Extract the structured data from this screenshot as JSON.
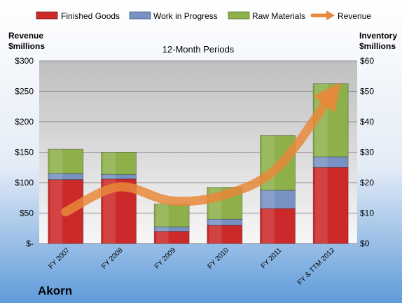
{
  "chart_data": {
    "type": "bar",
    "stacked": true,
    "subtitle": "12-Month Periods",
    "company": "Akorn",
    "categories": [
      "FY 2007",
      "FY 2008",
      "FY 2009",
      "FY 2010",
      "FY 2011",
      "FY & TTM 2012"
    ],
    "left_axis": {
      "title_line1": "Revenue",
      "title_line2": "$millions",
      "ylim": [
        0,
        300
      ],
      "tick_values": [
        0,
        50,
        100,
        150,
        200,
        250,
        300
      ],
      "tick_labels": [
        "$-",
        "$50",
        "$100",
        "$150",
        "$200",
        "$250",
        "$300"
      ]
    },
    "right_axis": {
      "title_line1": "Inventory",
      "title_line2": "$millions",
      "ylim": [
        0,
        60
      ],
      "tick_values": [
        0,
        10,
        20,
        30,
        40,
        50,
        60
      ],
      "tick_labels": [
        "$0",
        "$10",
        "$20",
        "$30",
        "$40",
        "$50",
        "$60"
      ]
    },
    "series": [
      {
        "name": "Finished Goods",
        "axis": "right",
        "color": "#cc2a2a",
        "values": [
          21,
          21.2,
          4,
          6,
          11.5,
          25
        ]
      },
      {
        "name": "Work in Progress",
        "axis": "right",
        "color": "#7792c2",
        "values": [
          2,
          1.5,
          1.5,
          2,
          6,
          3.5
        ]
      },
      {
        "name": "Raw Materials",
        "axis": "right",
        "color": "#8eb04a",
        "values": [
          8,
          7.3,
          7.5,
          10.5,
          18,
          24
        ]
      },
      {
        "name": "Revenue",
        "axis": "left",
        "color": "#e8883a",
        "line": true,
        "values": [
          52,
          93,
          70,
          80,
          125,
          243
        ]
      }
    ],
    "grid": true,
    "legend": "top"
  }
}
